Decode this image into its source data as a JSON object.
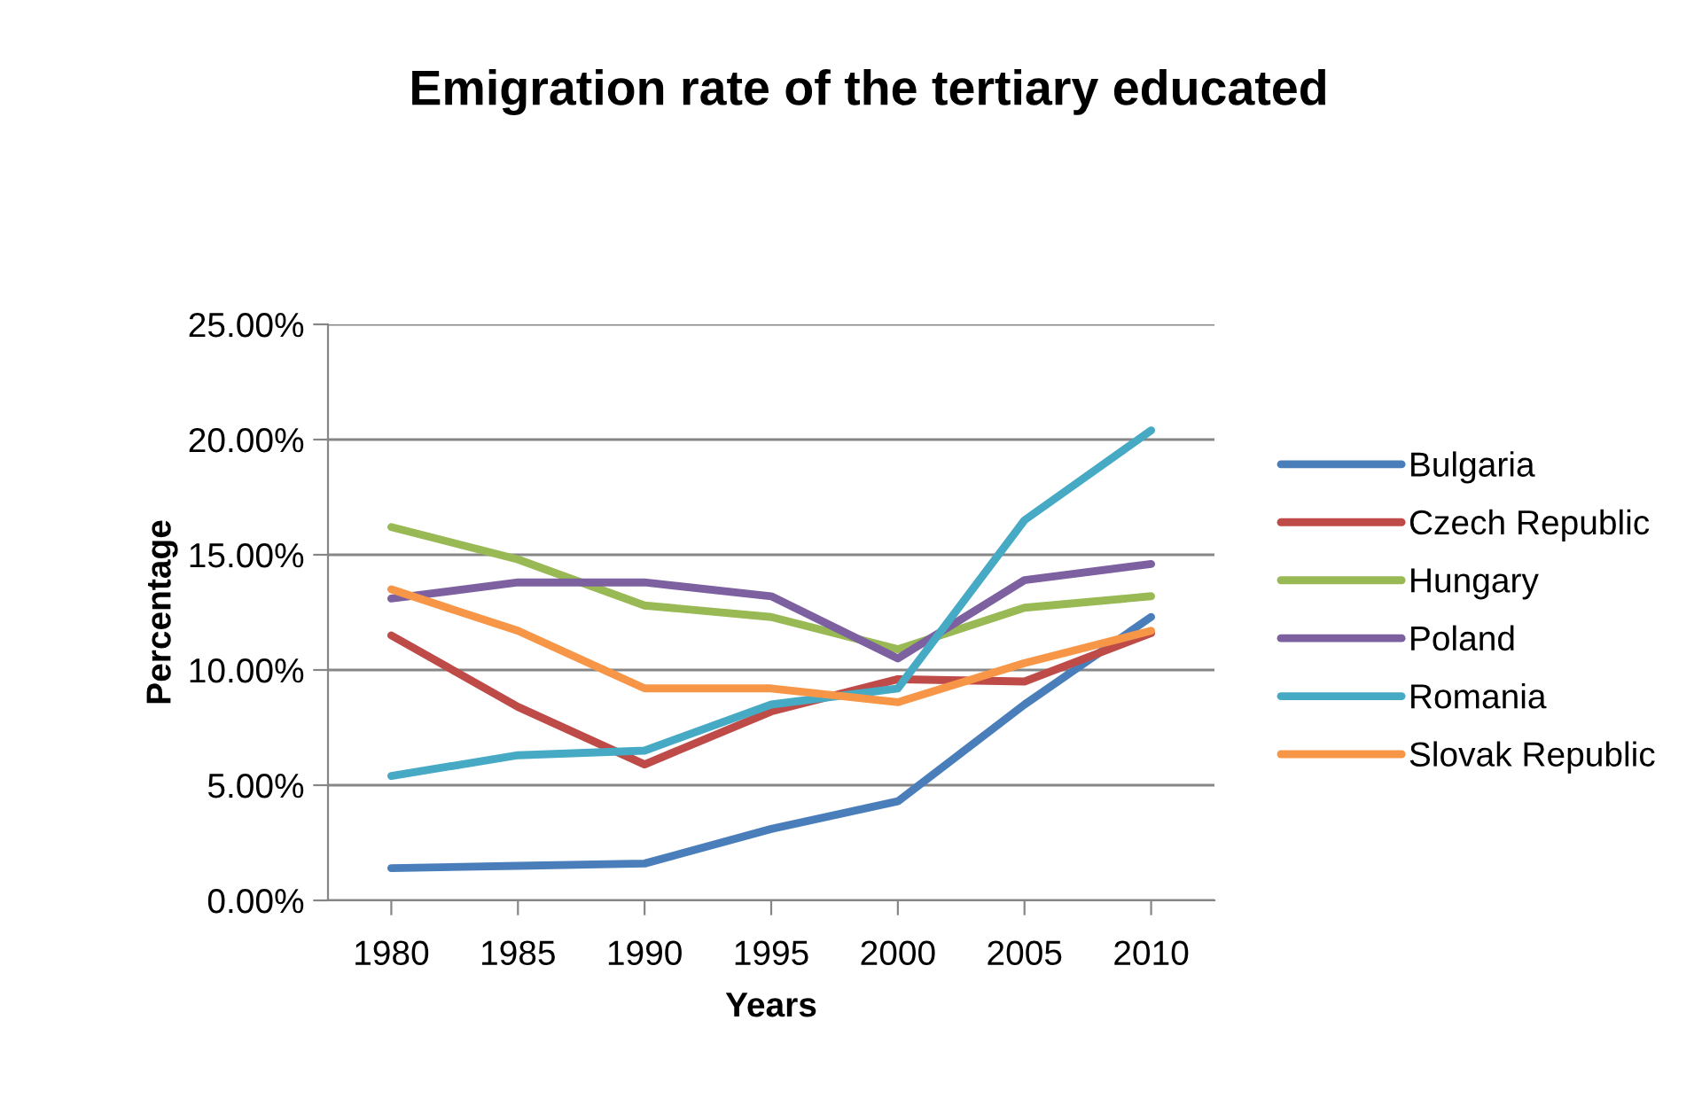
{
  "chart_data": {
    "type": "line",
    "title": "Emigration rate of the tertiary educated",
    "xlabel": "Years",
    "ylabel": "Percentage",
    "categories": [
      "1980",
      "1985",
      "1990",
      "1995",
      "2000",
      "2005",
      "2010"
    ],
    "series": [
      {
        "name": "Bulgaria",
        "color": "#4a7ebb",
        "values": [
          1.4,
          1.5,
          1.6,
          3.1,
          4.3,
          8.5,
          12.3
        ]
      },
      {
        "name": "Czech Republic",
        "color": "#be4b48",
        "values": [
          11.5,
          8.4,
          5.9,
          8.2,
          9.6,
          9.5,
          11.6
        ]
      },
      {
        "name": "Hungary",
        "color": "#98b954",
        "values": [
          16.2,
          14.8,
          12.8,
          12.3,
          10.9,
          12.7,
          13.2
        ]
      },
      {
        "name": "Poland",
        "color": "#7d60a0",
        "values": [
          13.1,
          13.8,
          13.8,
          13.2,
          10.5,
          13.9,
          14.6
        ]
      },
      {
        "name": "Romania",
        "color": "#46aac5",
        "values": [
          5.4,
          6.3,
          6.5,
          8.5,
          9.2,
          16.5,
          20.4
        ]
      },
      {
        "name": "Slovak Republic",
        "color": "#f79646",
        "values": [
          13.5,
          11.7,
          9.2,
          9.2,
          8.6,
          10.3,
          11.7
        ]
      }
    ],
    "ylim": [
      0,
      25
    ],
    "yticks": [
      {
        "value": 0,
        "label": "0.00%"
      },
      {
        "value": 5,
        "label": "5.00%"
      },
      {
        "value": 10,
        "label": "10.00%"
      },
      {
        "value": 15,
        "label": "15.00%"
      },
      {
        "value": 20,
        "label": "20.00%"
      },
      {
        "value": 25,
        "label": "25.00%"
      }
    ],
    "grid": "y",
    "legend": "right",
    "marker": "none",
    "line_style": "solid"
  }
}
